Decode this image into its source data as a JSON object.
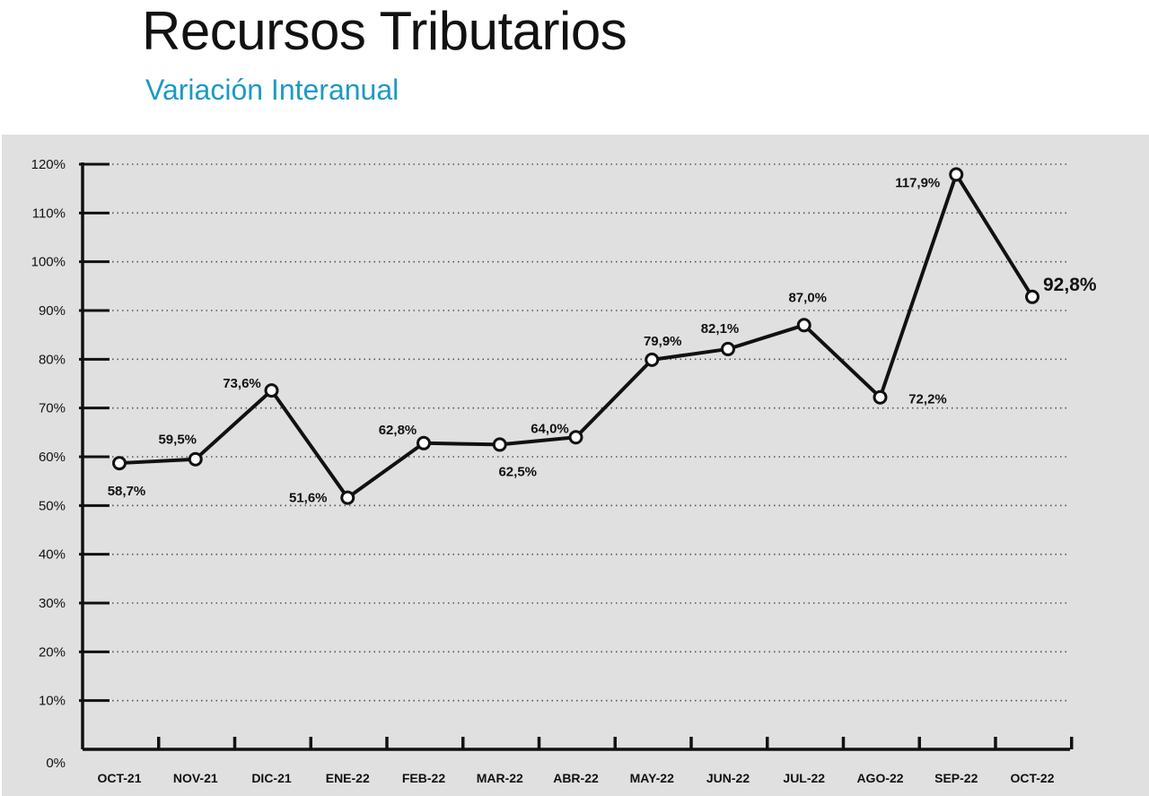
{
  "header": {
    "title": "Recursos Tributarios",
    "subtitle": "Variación Interanual"
  },
  "colors": {
    "subtitle": "#1c9ac4",
    "background": "#e0e0e0",
    "line": "#111111",
    "marker_fill": "#ffffff"
  },
  "chart_data": {
    "type": "line",
    "title": "Recursos Tributarios",
    "subtitle": "Variación Interanual",
    "xlabel": "",
    "ylabel": "",
    "categories": [
      "OCT-21",
      "NOV-21",
      "DIC-21",
      "ENE-22",
      "FEB-22",
      "MAR-22",
      "ABR-22",
      "MAY-22",
      "JUN-22",
      "JUL-22",
      "AGO-22",
      "SEP-22",
      "OCT-22"
    ],
    "series": [
      {
        "values": [
          58.7,
          59.5,
          73.6,
          51.6,
          62.8,
          62.5,
          64.0,
          79.9,
          82.1,
          87.0,
          72.2,
          117.9,
          92.8
        ],
        "labels": [
          "58,7%",
          "59,5%",
          "73,6%",
          "51,6%",
          "62,8%",
          "62,5%",
          "64,0%",
          "79,9%",
          "82,1%",
          "87,0%",
          "72,2%",
          "117,9%",
          "92,8%"
        ]
      }
    ],
    "ylim": [
      0,
      120
    ],
    "yticks": [
      "0%",
      "10%",
      "20%",
      "30%",
      "40%",
      "50%",
      "60%",
      "70%",
      "80%",
      "90%",
      "100%",
      "110%",
      "120%"
    ],
    "grid": "horizontal-dotted",
    "legend": "none"
  }
}
